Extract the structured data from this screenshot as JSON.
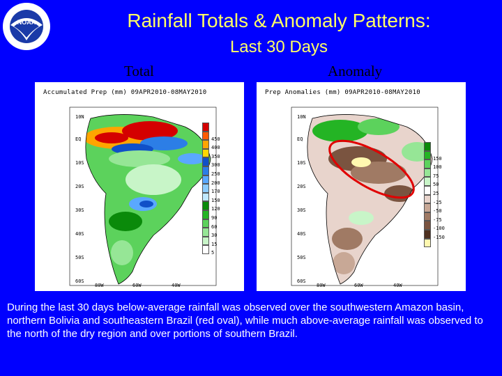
{
  "header": {
    "title": "Rainfall Totals & Anomaly Patterns:",
    "subtitle": "Last 30 Days",
    "logo_text": "NOAA"
  },
  "labels": {
    "total": "Total",
    "anomaly": "Anomaly"
  },
  "total_map": {
    "title": "Accumulated Prep (mm) 09APR2010-08MAY2010",
    "lat_labels": [
      "10N",
      "EQ",
      "10S",
      "20S",
      "30S",
      "40S",
      "50S",
      "60S"
    ],
    "lon_labels": [
      "80W",
      "60W",
      "40W"
    ],
    "colorbar": [
      {
        "value": "",
        "color": "#d40000"
      },
      {
        "value": "450",
        "color": "#ff5a00"
      },
      {
        "value": "400",
        "color": "#ffa500"
      },
      {
        "value": "350",
        "color": "#ffd700"
      },
      {
        "value": "300",
        "color": "#1050c8"
      },
      {
        "value": "250",
        "color": "#2c7ee6"
      },
      {
        "value": "200",
        "color": "#5aa8ff"
      },
      {
        "value": "170",
        "color": "#8ccbff"
      },
      {
        "value": "150",
        "color": "#c0e8ff"
      },
      {
        "value": "120",
        "color": "#0a8a0a"
      },
      {
        "value": "90",
        "color": "#24b424"
      },
      {
        "value": "60",
        "color": "#5cd25c"
      },
      {
        "value": "30",
        "color": "#96e696"
      },
      {
        "value": "15",
        "color": "#c8f5c8"
      },
      {
        "value": "5",
        "color": "#ffffff"
      }
    ]
  },
  "anomaly_map": {
    "title": "Prep Anomalies (mm) 09APR2010-08MAY2010",
    "lat_labels": [
      "10N",
      "EQ",
      "10S",
      "20S",
      "30S",
      "40S",
      "50S",
      "60S"
    ],
    "lon_labels": [
      "80W",
      "60W",
      "40W"
    ],
    "colorbar": [
      {
        "value": "",
        "color": "#0a8a0a"
      },
      {
        "value": "150",
        "color": "#24b424"
      },
      {
        "value": "100",
        "color": "#5cd25c"
      },
      {
        "value": "75",
        "color": "#96e696"
      },
      {
        "value": "50",
        "color": "#c8f5c8"
      },
      {
        "value": "25",
        "color": "#ffffff"
      },
      {
        "value": "-25",
        "color": "#e8d4cc"
      },
      {
        "value": "-50",
        "color": "#c8a896"
      },
      {
        "value": "-75",
        "color": "#a07a64"
      },
      {
        "value": "-100",
        "color": "#7a5440"
      },
      {
        "value": "-150",
        "color": "#4e3020"
      },
      {
        "value": "",
        "color": "#fff8b0"
      }
    ],
    "oval_color": "#e00000"
  },
  "caption": "During the last 30 days below-average rainfall was observed over the southwestern Amazon basin, northern Bolivia and southeastern Brazil (red oval), while much above-average rainfall was observed to the north of the dry region and over portions of southern Brazil."
}
